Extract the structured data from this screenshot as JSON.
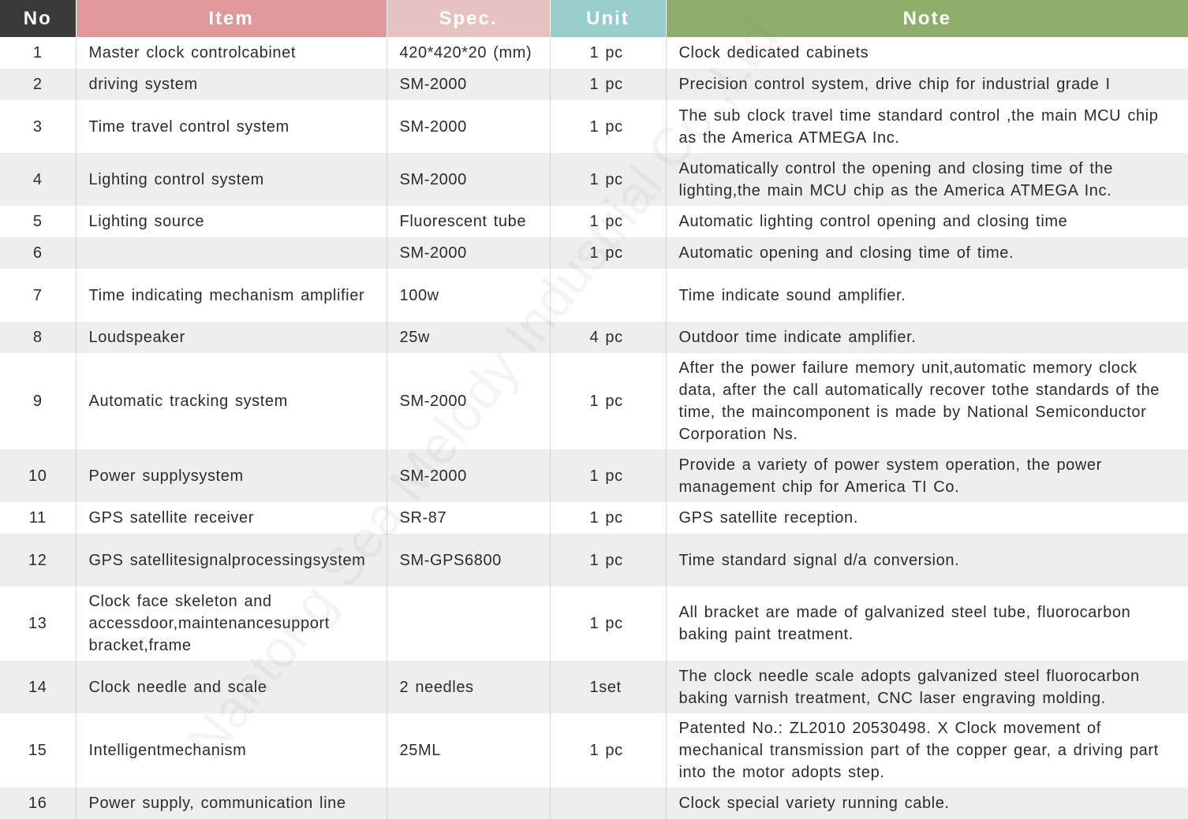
{
  "header": {
    "no": "No",
    "item": "Item",
    "spec": "Spec.",
    "unit": "Unit",
    "note": "Note"
  },
  "rows": [
    {
      "no": "1",
      "item": "Master clock controlcabinet",
      "spec": "420*420*20 (mm)",
      "unit": "1 pc",
      "note": "Clock dedicated cabinets"
    },
    {
      "no": "2",
      "item": "driving system",
      "spec": "SM-2000",
      "unit": "1 pc",
      "note": "Precision control system, drive chip for industrial grade I"
    },
    {
      "no": "3",
      "item": "Time travel control system",
      "spec": "SM-2000",
      "unit": "1 pc",
      "note": "The sub clock travel time standard control ,the main MCU chip as the America ATMEGA Inc."
    },
    {
      "no": "4",
      "item": "Lighting control system",
      "spec": "SM-2000",
      "unit": "1 pc",
      "note": "Automatically control the opening and closing time of the lighting,the main MCU chip as the America ATMEGA Inc."
    },
    {
      "no": "5",
      "item": "Lighting source",
      "spec": "Fluorescent tube",
      "unit": "1 pc",
      "note": "Automatic lighting control opening and closing time"
    },
    {
      "no": "6",
      "item": "",
      "spec": "SM-2000",
      "unit": "1 pc",
      "note": "Automatic opening and closing time of time."
    },
    {
      "no": "7",
      "item": "Time indicating mechanism amplifier",
      "spec": "100w",
      "unit": "",
      "note": "Time indicate sound amplifier."
    },
    {
      "no": "8",
      "item": "Loudspeaker",
      "spec": "25w",
      "unit": "4 pc",
      "note": "Outdoor time indicate amplifier."
    },
    {
      "no": "9",
      "item": "Automatic tracking system",
      "spec": "SM-2000",
      "unit": "1 pc",
      "note": "After the power failure memory unit,automatic memory clock data, after the call automatically recover tothe standards of the time, the maincomponent is made by National Semiconductor Corporation Ns."
    },
    {
      "no": "10",
      "item": "Power supplysystem",
      "spec": "SM-2000",
      "unit": "1 pc",
      "note": "Provide a variety of power system operation, the power management chip for America TI Co."
    },
    {
      "no": "11",
      "item": "GPS satellite receiver",
      "spec": "SR-87",
      "unit": "1 pc",
      "note": "GPS satellite reception."
    },
    {
      "no": "12",
      "item": "GPS satellitesignalprocessingsystem",
      "spec": "SM-GPS6800",
      "unit": "1 pc",
      "note": "Time standard signal d/a conversion."
    },
    {
      "no": "13",
      "item": "Clock face skeleton and accessdoor,maintenancesupport bracket,frame",
      "spec": "",
      "unit": "1 pc",
      "note": "All bracket are made of galvanized steel tube, fluorocarbon baking paint treatment."
    },
    {
      "no": "14",
      "item": "Clock needle and scale",
      "spec": "2 needles",
      "unit": "1set",
      "note": "The clock needle scale adopts galvanized steel fluorocarbon baking varnish treatment, CNC laser engraving molding."
    },
    {
      "no": "15",
      "item": "Intelligentmechanism",
      "spec": "25ML",
      "unit": "1 pc",
      "note": "Patented No.: ZL2010 20530498. X    Clock movement of mechanical transmission part of the copper gear, a driving part into the motor adopts step."
    },
    {
      "no": "16",
      "item": "Power supply, communication line",
      "spec": "",
      "unit": "",
      "note": "Clock special variety running cable."
    }
  ],
  "watermark": "Nantong Sea Melody Industrial Co.,Ltd"
}
